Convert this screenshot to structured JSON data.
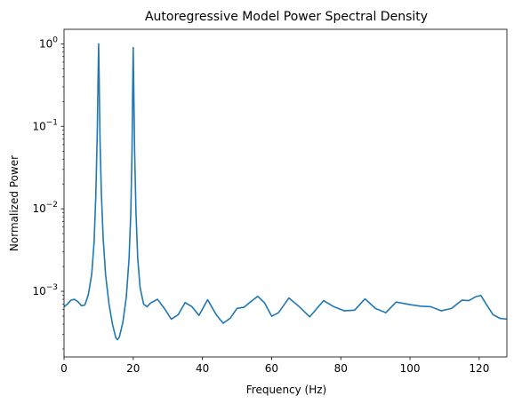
{
  "chart_data": {
    "type": "line",
    "title": "Autoregressive Model Power Spectral Density",
    "xlabel": "Frequency (Hz)",
    "ylabel": "Normalized Power",
    "xlim": [
      0,
      128
    ],
    "ylim": [
      0.00016,
      1.5
    ],
    "yscale": "log",
    "grid": false,
    "legend": "none",
    "x_ticks": [
      {
        "value": 0,
        "label": "0"
      },
      {
        "value": 20,
        "label": "20"
      },
      {
        "value": 40,
        "label": "40"
      },
      {
        "value": 60,
        "label": "60"
      },
      {
        "value": 80,
        "label": "80"
      },
      {
        "value": 100,
        "label": "100"
      },
      {
        "value": 120,
        "label": "120"
      }
    ],
    "y_ticks": [
      {
        "value": 0.001,
        "base": "10",
        "exp": "−3"
      },
      {
        "value": 0.01,
        "base": "10",
        "exp": "−2"
      },
      {
        "value": 0.1,
        "base": "10",
        "exp": "−1"
      },
      {
        "value": 1,
        "base": "10",
        "exp": "0"
      }
    ],
    "line_color": "#1f77b4",
    "series": [
      {
        "x": [
          0,
          1,
          2,
          3,
          4,
          5,
          6,
          7,
          8,
          8.7,
          9.2,
          9.6,
          9.85,
          10,
          10.15,
          10.4,
          10.8,
          11.3,
          12,
          13,
          14,
          15,
          15.5,
          16,
          17,
          18,
          18.8,
          19.3,
          19.65,
          19.85,
          20,
          20.15,
          20.4,
          20.8,
          21.3,
          22,
          23,
          24,
          25,
          27,
          29,
          31,
          33,
          35,
          37,
          39,
          41.5,
          44,
          46,
          48,
          50,
          52,
          54,
          56,
          58,
          60,
          62,
          65,
          68,
          71,
          75,
          78,
          81,
          84,
          87,
          90,
          93,
          96,
          100,
          103,
          106,
          109,
          112,
          115,
          117,
          119,
          120.5,
          122,
          124,
          126,
          128
        ],
        "y": [
          0.00065,
          0.0007,
          0.00078,
          0.0008,
          0.00075,
          0.00067,
          0.00068,
          0.0009,
          0.0016,
          0.004,
          0.015,
          0.08,
          0.4,
          1.0,
          0.4,
          0.07,
          0.015,
          0.0045,
          0.0016,
          0.0007,
          0.0004,
          0.00027,
          0.00026,
          0.00028,
          0.00042,
          0.00085,
          0.0025,
          0.009,
          0.05,
          0.3,
          0.9,
          0.3,
          0.05,
          0.009,
          0.0025,
          0.0011,
          0.0007,
          0.00065,
          0.00072,
          0.0008,
          0.00062,
          0.00046,
          0.00052,
          0.00073,
          0.00065,
          0.00051,
          0.00079,
          0.00052,
          0.00041,
          0.00047,
          0.00062,
          0.00064,
          0.00075,
          0.00087,
          0.00072,
          0.0005,
          0.00055,
          0.00083,
          0.00065,
          0.00049,
          0.00077,
          0.00065,
          0.00058,
          0.00059,
          0.00081,
          0.00062,
          0.00055,
          0.00074,
          0.00069,
          0.00066,
          0.00065,
          0.00058,
          0.00062,
          0.00078,
          0.00077,
          0.00086,
          0.00089,
          0.0007,
          0.00052,
          0.00047,
          0.00046
        ]
      }
    ]
  }
}
